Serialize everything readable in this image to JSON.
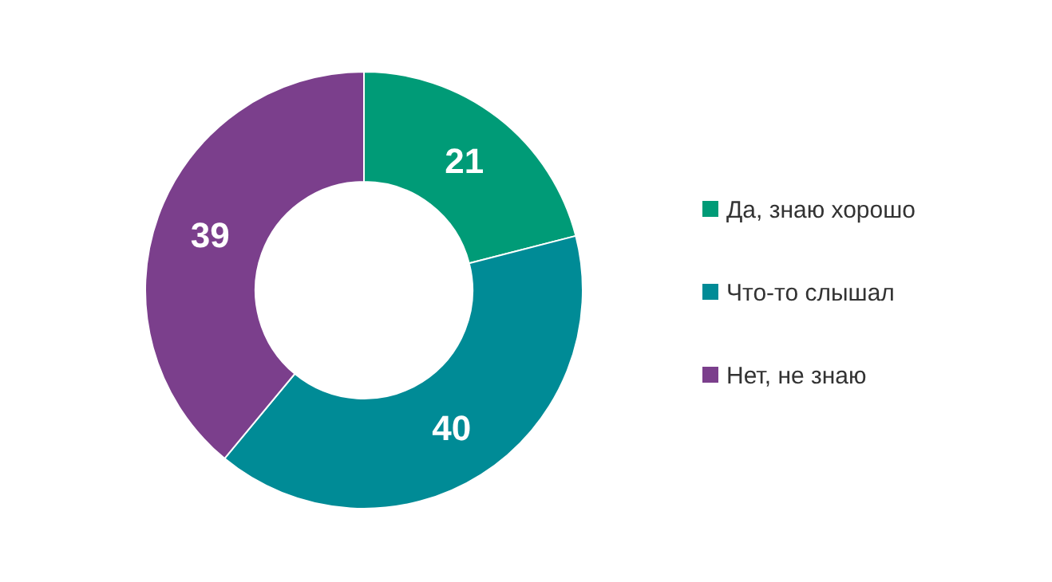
{
  "chart_data": {
    "type": "donut",
    "categories": [
      "Да, знаю хорошо",
      "Что-то слышал",
      "Нет, не знаю"
    ],
    "values": [
      21,
      40,
      39
    ],
    "colors": [
      "#009b77",
      "#008b96",
      "#7b3f8c"
    ],
    "data_labels": true,
    "legend": "right"
  }
}
